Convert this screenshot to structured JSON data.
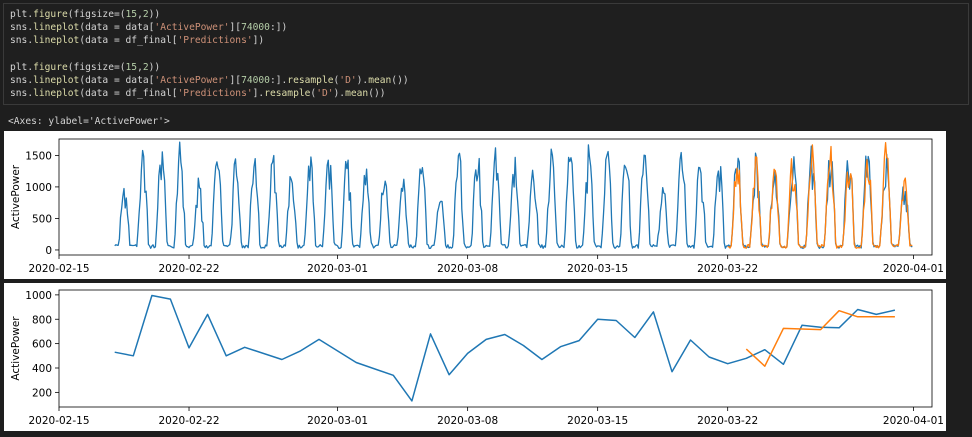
{
  "cell": {
    "lines": [
      [
        {
          "t": "plt.",
          "c": ""
        },
        {
          "t": "figure",
          "c": "fn"
        },
        {
          "t": "(figsize=(",
          "c": ""
        },
        {
          "t": "15",
          "c": "num"
        },
        {
          "t": ",",
          "c": ""
        },
        {
          "t": "2",
          "c": "num"
        },
        {
          "t": "))",
          "c": ""
        }
      ],
      [
        {
          "t": "sns.",
          "c": ""
        },
        {
          "t": "lineplot",
          "c": "fn"
        },
        {
          "t": "(data = data[",
          "c": ""
        },
        {
          "t": "'ActivePower'",
          "c": "str"
        },
        {
          "t": "][",
          "c": ""
        },
        {
          "t": "74000",
          "c": "num"
        },
        {
          "t": ":])",
          "c": ""
        }
      ],
      [
        {
          "t": "sns.",
          "c": ""
        },
        {
          "t": "lineplot",
          "c": "fn"
        },
        {
          "t": "(data = df_final[",
          "c": ""
        },
        {
          "t": "'Predictions'",
          "c": "str"
        },
        {
          "t": "])",
          "c": ""
        }
      ],
      [],
      [
        {
          "t": "plt.",
          "c": ""
        },
        {
          "t": "figure",
          "c": "fn"
        },
        {
          "t": "(figsize=(",
          "c": ""
        },
        {
          "t": "15",
          "c": "num"
        },
        {
          "t": ",",
          "c": ""
        },
        {
          "t": "2",
          "c": "num"
        },
        {
          "t": "))",
          "c": ""
        }
      ],
      [
        {
          "t": "sns.",
          "c": ""
        },
        {
          "t": "lineplot",
          "c": "fn"
        },
        {
          "t": "(data = data[",
          "c": ""
        },
        {
          "t": "'ActivePower'",
          "c": "str"
        },
        {
          "t": "][",
          "c": ""
        },
        {
          "t": "74000",
          "c": "num"
        },
        {
          "t": ":].",
          "c": ""
        },
        {
          "t": "resample",
          "c": "fn"
        },
        {
          "t": "(",
          "c": ""
        },
        {
          "t": "'D'",
          "c": "str"
        },
        {
          "t": ").",
          "c": ""
        },
        {
          "t": "mean",
          "c": "fn"
        },
        {
          "t": "())",
          "c": ""
        }
      ],
      [
        {
          "t": "sns.",
          "c": ""
        },
        {
          "t": "lineplot",
          "c": "fn"
        },
        {
          "t": "(data = df_final[",
          "c": ""
        },
        {
          "t": "'Predictions'",
          "c": "str"
        },
        {
          "t": "].",
          "c": ""
        },
        {
          "t": "resample",
          "c": "fn"
        },
        {
          "t": "(",
          "c": ""
        },
        {
          "t": "'D'",
          "c": "str"
        },
        {
          "t": ").",
          "c": ""
        },
        {
          "t": "mean",
          "c": "fn"
        },
        {
          "t": "())",
          "c": ""
        }
      ]
    ]
  },
  "output": {
    "label": "<Axes: ylabel='ActivePower'>"
  },
  "colors": {
    "actual": "#1f77b4",
    "predictions": "#ff7f0e"
  },
  "chart_data": [
    {
      "type": "line",
      "ylabel": "ActivePower",
      "xlim": [
        "2020-02-15",
        "2020-04-02"
      ],
      "ylim": [
        -80,
        1760
      ],
      "x_ticks": [
        "2020-02-15",
        "2020-02-22",
        "2020-03-01",
        "2020-03-08",
        "2020-03-15",
        "2020-03-22",
        "2020-04-01"
      ],
      "x_tick_labels": [
        "2020-02-15",
        "2020-02-22",
        "2020-03-01",
        "2020-03-08",
        "2020-03-15",
        "2020-03-22",
        "2020-04-01"
      ],
      "y_ticks": [
        0,
        500,
        1000,
        1500
      ],
      "series": [
        {
          "key": "actual",
          "daily_peaks": [
            [
              "2020-02-18",
              1000
            ],
            [
              "2020-02-19",
              1640
            ],
            [
              "2020-02-20",
              1700
            ],
            [
              "2020-02-21",
              1700
            ],
            [
              "2020-02-22",
              1150
            ],
            [
              "2020-02-23",
              1700
            ],
            [
              "2020-02-24",
              1500
            ],
            [
              "2020-02-25",
              1600
            ],
            [
              "2020-02-26",
              1650
            ],
            [
              "2020-02-27",
              1550
            ],
            [
              "2020-02-28",
              1500
            ],
            [
              "2020-02-29",
              1600
            ],
            [
              "2020-03-01",
              1500
            ],
            [
              "2020-03-02",
              1300
            ],
            [
              "2020-03-03",
              1250
            ],
            [
              "2020-03-04",
              1200
            ],
            [
              "2020-03-05",
              1500
            ],
            [
              "2020-03-06",
              900
            ],
            [
              "2020-03-07",
              1600
            ],
            [
              "2020-03-08",
              1700
            ],
            [
              "2020-03-09",
              1650
            ],
            [
              "2020-03-10",
              1500
            ],
            [
              "2020-03-11",
              1400
            ],
            [
              "2020-03-12",
              1600
            ],
            [
              "2020-03-13",
              1650
            ],
            [
              "2020-03-14",
              1700
            ],
            [
              "2020-03-15",
              1700
            ],
            [
              "2020-03-16",
              1650
            ],
            [
              "2020-03-17",
              1700
            ],
            [
              "2020-03-18",
              1050
            ],
            [
              "2020-03-19",
              1650
            ],
            [
              "2020-03-20",
              1500
            ],
            [
              "2020-03-21",
              1600
            ],
            [
              "2020-03-22",
              1650
            ],
            [
              "2020-03-23",
              1600
            ],
            [
              "2020-03-24",
              1400
            ],
            [
              "2020-03-25",
              1600
            ],
            [
              "2020-03-26",
              1700
            ],
            [
              "2020-03-27",
              1700
            ],
            [
              "2020-03-28",
              1700
            ],
            [
              "2020-03-29",
              1650
            ],
            [
              "2020-03-30",
              1700
            ],
            [
              "2020-03-31",
              1200
            ]
          ]
        },
        {
          "key": "predictions",
          "daily_peaks": [
            [
              "2020-03-22",
              1500
            ],
            [
              "2020-03-23",
              1600
            ],
            [
              "2020-03-24",
              1400
            ],
            [
              "2020-03-25",
              1600
            ],
            [
              "2020-03-26",
              1700
            ],
            [
              "2020-03-27",
              1700
            ],
            [
              "2020-03-28",
              1700
            ],
            [
              "2020-03-29",
              1650
            ],
            [
              "2020-03-30",
              1700
            ],
            [
              "2020-03-31",
              1200
            ]
          ]
        }
      ]
    },
    {
      "type": "line",
      "ylabel": "ActivePower",
      "xlim": [
        "2020-02-15",
        "2020-04-02"
      ],
      "ylim": [
        80,
        1040
      ],
      "x_ticks": [
        "2020-02-15",
        "2020-02-22",
        "2020-03-01",
        "2020-03-08",
        "2020-03-15",
        "2020-03-22",
        "2020-04-01"
      ],
      "x_tick_labels": [
        "2020-02-15",
        "2020-02-22",
        "2020-03-01",
        "2020-03-08",
        "2020-03-15",
        "2020-03-22",
        "2020-04-01"
      ],
      "y_ticks": [
        200,
        400,
        600,
        800,
        1000
      ],
      "series": [
        {
          "key": "actual",
          "x": [
            "2020-02-18",
            "2020-02-19",
            "2020-02-20",
            "2020-02-21",
            "2020-02-22",
            "2020-02-23",
            "2020-02-24",
            "2020-02-25",
            "2020-02-27",
            "2020-02-28",
            "2020-02-29",
            "2020-03-02",
            "2020-03-04",
            "2020-03-05",
            "2020-03-06",
            "2020-03-07",
            "2020-03-08",
            "2020-03-09",
            "2020-03-10",
            "2020-03-11",
            "2020-03-12",
            "2020-03-13",
            "2020-03-14",
            "2020-03-15",
            "2020-03-16",
            "2020-03-17",
            "2020-03-18",
            "2020-03-19",
            "2020-03-20",
            "2020-03-21",
            "2020-03-22",
            "2020-03-23",
            "2020-03-24",
            "2020-03-25",
            "2020-03-26",
            "2020-03-27",
            "2020-03-28",
            "2020-03-29",
            "2020-03-30",
            "2020-03-31"
          ],
          "y": [
            530,
            500,
            995,
            965,
            565,
            840,
            500,
            570,
            470,
            540,
            635,
            445,
            340,
            130,
            680,
            345,
            520,
            635,
            675,
            585,
            470,
            575,
            625,
            800,
            790,
            650,
            860,
            370,
            630,
            490,
            435,
            480,
            550,
            430,
            750,
            735,
            730,
            880,
            840,
            875
          ]
        },
        {
          "key": "predictions",
          "x": [
            "2020-03-23",
            "2020-03-24",
            "2020-03-25",
            "2020-03-26",
            "2020-03-27",
            "2020-03-28",
            "2020-03-29",
            "2020-03-30",
            "2020-03-31"
          ],
          "y": [
            555,
            415,
            725,
            720,
            715,
            870,
            820,
            820,
            820
          ]
        }
      ]
    }
  ]
}
